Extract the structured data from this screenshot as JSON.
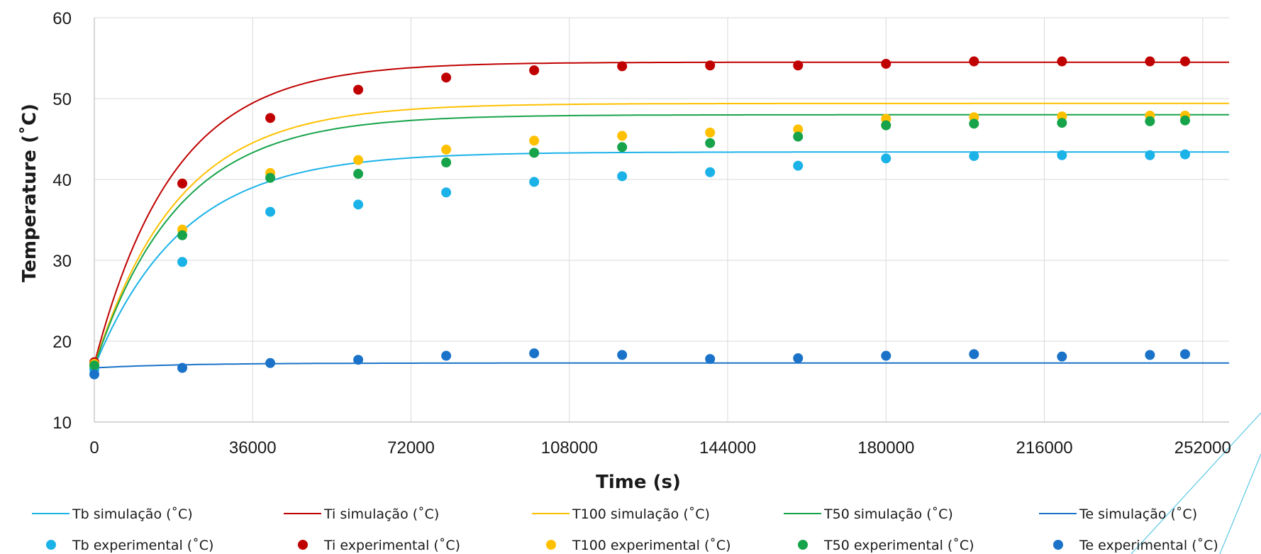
{
  "chart_data": {
    "type": "scatter",
    "xlabel": "Time (s)",
    "ylabel": "Temperature (˚C)",
    "xlim": [
      0,
      258000
    ],
    "ylim": [
      10,
      60
    ],
    "x_ticks": [
      "0",
      "36000",
      "72000",
      "108000",
      "144000",
      "180000",
      "216000",
      "252000"
    ],
    "y_ticks": [
      "10",
      "20",
      "30",
      "40",
      "50",
      "60"
    ],
    "grid": "vertical and horizontal major",
    "legend_position": "bottom",
    "series": [
      {
        "name": "Tb simulação (˚C)",
        "kind": "line",
        "color": "#1BB2E8",
        "start": 16.8,
        "final": 43.4,
        "tau": 20000
      },
      {
        "name": "Ti simulação (˚C)",
        "kind": "line",
        "color": "#C00000",
        "start": 17.2,
        "final": 54.5,
        "tau": 18000
      },
      {
        "name": "T100 simulação (˚C)",
        "kind": "line",
        "color": "#FFC000",
        "start": 17.0,
        "final": 49.4,
        "tau": 19000
      },
      {
        "name": "T50 simulação (˚C)",
        "kind": "line",
        "color": "#17A34A",
        "start": 16.9,
        "final": 48.0,
        "tau": 19000
      },
      {
        "name": "Te simulação (˚C)",
        "kind": "line",
        "color": "#1A73C8",
        "start": 16.7,
        "final": 17.3,
        "tau": 20000
      },
      {
        "name": "Tb experimental (˚C)",
        "kind": "points",
        "color": "#1BB2E8",
        "x": [
          0,
          20000,
          40000,
          60000,
          80000,
          100000,
          120000,
          140000,
          160000,
          180000,
          200000,
          220000,
          240000,
          248000
        ],
        "y": [
          16.5,
          29.8,
          36.0,
          36.9,
          38.4,
          39.7,
          40.4,
          40.9,
          41.7,
          42.6,
          42.9,
          43.0,
          43.0,
          43.1
        ]
      },
      {
        "name": "Ti experimental (˚C)",
        "kind": "points",
        "color": "#C00000",
        "x": [
          0,
          20000,
          40000,
          60000,
          80000,
          100000,
          120000,
          140000,
          160000,
          180000,
          200000,
          220000,
          240000,
          248000
        ],
        "y": [
          17.4,
          39.5,
          47.6,
          51.1,
          52.6,
          53.5,
          54.0,
          54.1,
          54.1,
          54.3,
          54.6,
          54.6,
          54.6,
          54.6
        ]
      },
      {
        "name": "T100 experimental (˚C)",
        "kind": "points",
        "color": "#FFC000",
        "x": [
          0,
          20000,
          40000,
          60000,
          80000,
          100000,
          120000,
          140000,
          160000,
          180000,
          200000,
          220000,
          240000,
          248000
        ],
        "y": [
          17.2,
          33.8,
          40.8,
          42.4,
          43.7,
          44.8,
          45.4,
          45.8,
          46.2,
          47.5,
          47.7,
          47.8,
          47.9,
          47.9
        ]
      },
      {
        "name": "T50 experimental (˚C)",
        "kind": "points",
        "color": "#17A34A",
        "x": [
          0,
          20000,
          40000,
          60000,
          80000,
          100000,
          120000,
          140000,
          160000,
          180000,
          200000,
          220000,
          240000,
          248000
        ],
        "y": [
          17.0,
          33.1,
          40.2,
          40.7,
          42.1,
          43.3,
          44.0,
          44.5,
          45.3,
          46.7,
          46.9,
          47.0,
          47.2,
          47.3
        ]
      },
      {
        "name": "Te experimental (˚C)",
        "kind": "points",
        "color": "#1A73C8",
        "x": [
          0,
          20000,
          40000,
          60000,
          80000,
          100000,
          120000,
          140000,
          160000,
          180000,
          200000,
          220000,
          240000,
          248000
        ],
        "y": [
          15.9,
          16.7,
          17.3,
          17.7,
          18.2,
          18.5,
          18.3,
          17.8,
          17.9,
          18.2,
          18.4,
          18.1,
          18.3,
          18.4
        ]
      }
    ]
  }
}
